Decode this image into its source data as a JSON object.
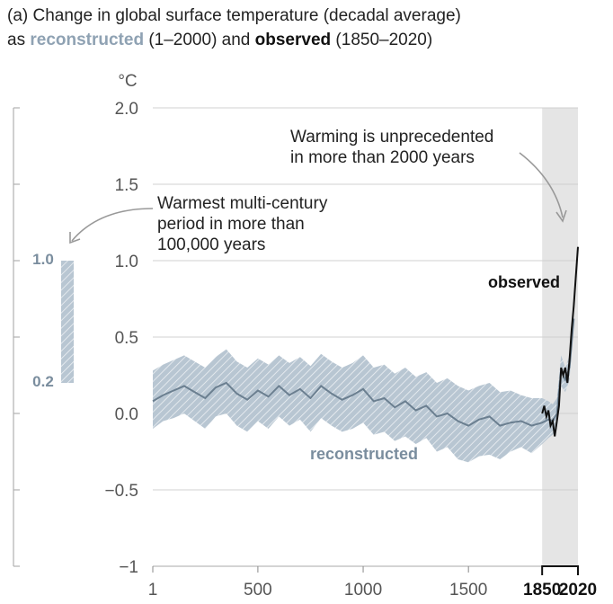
{
  "figure": {
    "title_line1": "(a) Change in global surface temperature (decadal average)",
    "title_line2_prefix": "as ",
    "title_line2_recon": "reconstructed",
    "title_line2_mid": " (1–2000) and ",
    "title_line2_obs": "observed",
    "title_line2_suffix": " (1850–2020)"
  },
  "colors": {
    "reconstructed": "#6b7f90",
    "reconstructed_band": "#b8c6d2",
    "observed": "#111111",
    "shading": "#e5e5e5",
    "grid": "#d0d0d0"
  },
  "annotations": {
    "warming_line1": "Warming is unprecedented",
    "warming_line2": "in more than 2000 years",
    "warmest_line1": "Warmest multi-century",
    "warmest_line2": "period in more than",
    "warmest_line3": "100,000 years",
    "observed_label": "observed",
    "reconstructed_label": "reconstructed"
  },
  "side_bar": {
    "top_label": "1.0",
    "bottom_label": "0.2",
    "top_value": 1.0,
    "bottom_value": 0.2
  },
  "chart_data": {
    "type": "line",
    "ylabel": "°C",
    "ylim": [
      -1,
      2
    ],
    "xlim": [
      1,
      2020
    ],
    "yticks": [
      "2.0",
      "1.5",
      "1.0",
      "0.5",
      "0.0",
      "−0.5",
      "−1"
    ],
    "ytick_values": [
      2.0,
      1.5,
      1.0,
      0.5,
      0.0,
      -0.5,
      -1.0
    ],
    "xticks": [
      "1",
      "500",
      "1000",
      "1500",
      "1850",
      "2020"
    ],
    "xtick_values": [
      1,
      500,
      1000,
      1500,
      1850,
      2020
    ],
    "shaded_period": [
      1850,
      2020
    ],
    "grid": true,
    "series": [
      {
        "name": "reconstructed",
        "x": [
          1,
          50,
          100,
          150,
          200,
          250,
          300,
          350,
          400,
          450,
          500,
          550,
          600,
          650,
          700,
          750,
          800,
          850,
          900,
          950,
          1000,
          1050,
          1100,
          1150,
          1200,
          1250,
          1300,
          1350,
          1400,
          1450,
          1500,
          1550,
          1600,
          1650,
          1700,
          1750,
          1800,
          1850,
          1880,
          1900,
          1920,
          1940,
          1960,
          1980,
          2000
        ],
        "values": [
          0.08,
          0.12,
          0.15,
          0.18,
          0.14,
          0.1,
          0.17,
          0.2,
          0.13,
          0.09,
          0.15,
          0.11,
          0.18,
          0.12,
          0.16,
          0.1,
          0.18,
          0.13,
          0.09,
          0.12,
          0.16,
          0.08,
          0.1,
          0.04,
          0.08,
          0.02,
          0.05,
          -0.02,
          0.0,
          -0.05,
          -0.08,
          -0.04,
          -0.02,
          -0.08,
          -0.06,
          -0.05,
          -0.08,
          -0.06,
          -0.04,
          -0.05,
          0.0,
          0.28,
          0.22,
          0.3,
          0.62
        ],
        "lower": [
          -0.1,
          -0.05,
          -0.03,
          0.0,
          -0.05,
          -0.1,
          -0.02,
          0.0,
          -0.08,
          -0.12,
          -0.05,
          -0.1,
          -0.02,
          -0.08,
          -0.04,
          -0.12,
          -0.03,
          -0.08,
          -0.12,
          -0.1,
          -0.06,
          -0.14,
          -0.12,
          -0.18,
          -0.15,
          -0.2,
          -0.16,
          -0.25,
          -0.22,
          -0.3,
          -0.32,
          -0.28,
          -0.27,
          -0.3,
          -0.25,
          -0.22,
          -0.26,
          -0.2,
          -0.16,
          -0.14,
          -0.1,
          0.18,
          0.14,
          0.22,
          0.58
        ],
        "upper": [
          0.28,
          0.32,
          0.35,
          0.38,
          0.34,
          0.3,
          0.37,
          0.42,
          0.34,
          0.3,
          0.36,
          0.32,
          0.38,
          0.33,
          0.37,
          0.31,
          0.39,
          0.34,
          0.3,
          0.33,
          0.38,
          0.3,
          0.32,
          0.26,
          0.3,
          0.24,
          0.27,
          0.2,
          0.23,
          0.18,
          0.15,
          0.18,
          0.2,
          0.14,
          0.15,
          0.12,
          0.1,
          0.1,
          0.08,
          0.06,
          0.1,
          0.38,
          0.3,
          0.38,
          0.66
        ]
      },
      {
        "name": "observed",
        "x": [
          1850,
          1860,
          1870,
          1880,
          1890,
          1900,
          1910,
          1920,
          1930,
          1940,
          1950,
          1960,
          1970,
          1980,
          1990,
          2000,
          2010,
          2020
        ],
        "values": [
          0.0,
          0.05,
          -0.02,
          0.02,
          -0.08,
          -0.05,
          -0.15,
          -0.05,
          0.05,
          0.3,
          0.25,
          0.3,
          0.2,
          0.35,
          0.55,
          0.7,
          0.9,
          1.09
        ]
      }
    ]
  }
}
